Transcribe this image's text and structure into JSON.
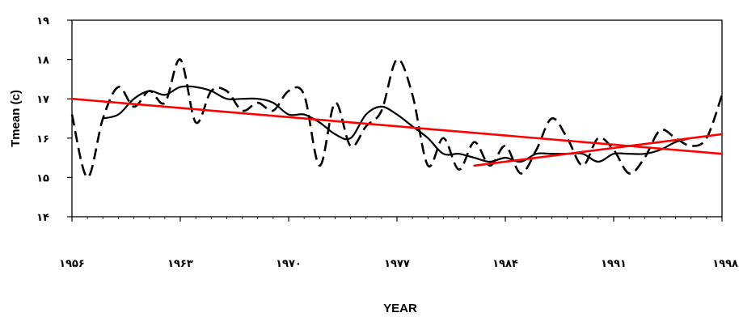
{
  "chart_data": {
    "type": "line",
    "title": "",
    "xlabel": "YEAR",
    "ylabel": "Tmean (c)",
    "xlim": [
      1956,
      1998
    ],
    "ylim": [
      14,
      19
    ],
    "y_ticks": [
      14,
      15,
      16,
      17,
      18,
      19
    ],
    "y_tick_labels": [
      "۱۴",
      "۱۵",
      "۱۶",
      "۱۷",
      "۱۸",
      "۱۹"
    ],
    "x_ticks": [
      1956,
      1963,
      1970,
      1977,
      1984,
      1991,
      1998
    ],
    "x_tick_labels": [
      "۱۹۵۶",
      "۱۹۶۳",
      "۱۹۷۰",
      "۱۹۷۷",
      "۱۹۸۴",
      "۱۹۹۱",
      "۱۹۹۸"
    ],
    "grid": false,
    "legend": "none",
    "colors": {
      "annual": "#000000",
      "moving_average": "#000000",
      "trend": "#ff0000"
    },
    "series": [
      {
        "style": "dashed",
        "x": [
          1956,
          1957,
          1958,
          1959,
          1960,
          1961,
          1962,
          1963,
          1964,
          1965,
          1966,
          1967,
          1968,
          1969,
          1970,
          1971,
          1972,
          1973,
          1974,
          1975,
          1976,
          1977,
          1978,
          1979,
          1980,
          1981,
          1982,
          1983,
          1984,
          1985,
          1986,
          1987,
          1988,
          1989,
          1990,
          1991,
          1992,
          1993,
          1994,
          1995,
          1996,
          1997,
          1998
        ],
        "y": [
          16.6,
          15.0,
          16.5,
          17.3,
          16.8,
          17.2,
          16.9,
          18.0,
          16.4,
          17.2,
          17.2,
          16.7,
          16.9,
          16.7,
          17.2,
          17.1,
          15.3,
          16.9,
          15.8,
          16.3,
          16.7,
          18.0,
          17.1,
          15.3,
          16.0,
          15.2,
          15.9,
          15.3,
          15.8,
          15.1,
          15.7,
          16.5,
          16.0,
          15.3,
          16.0,
          15.7,
          15.1,
          15.5,
          16.2,
          16.0,
          15.8,
          16.0,
          17.1
        ]
      },
      {
        "style": "solid",
        "x": [
          1958,
          1959,
          1960,
          1961,
          1962,
          1963,
          1964,
          1965,
          1966,
          1967,
          1968,
          1969,
          1970,
          1971,
          1972,
          1973,
          1974,
          1975,
          1976,
          1977,
          1978,
          1979,
          1980,
          1981,
          1982,
          1983,
          1984,
          1985,
          1986,
          1987,
          1988,
          1989,
          1990,
          1991,
          1992,
          1993,
          1994,
          1995,
          1996
        ],
        "y": [
          16.5,
          16.6,
          17.0,
          17.2,
          17.1,
          17.3,
          17.3,
          17.2,
          17.0,
          17.0,
          17.0,
          16.9,
          16.6,
          16.6,
          16.4,
          16.1,
          16.0,
          16.6,
          16.8,
          16.6,
          16.3,
          16.0,
          15.6,
          15.6,
          15.5,
          15.4,
          15.5,
          15.4,
          15.6,
          15.6,
          15.6,
          15.6,
          15.4,
          15.6,
          15.6,
          15.6,
          15.7,
          15.9,
          16.0
        ]
      },
      {
        "style": "trend",
        "x": [
          1956,
          1998
        ],
        "y": [
          17.0,
          15.6
        ]
      },
      {
        "style": "trend",
        "x": [
          1982,
          1998
        ],
        "y": [
          15.3,
          16.1
        ]
      }
    ]
  }
}
